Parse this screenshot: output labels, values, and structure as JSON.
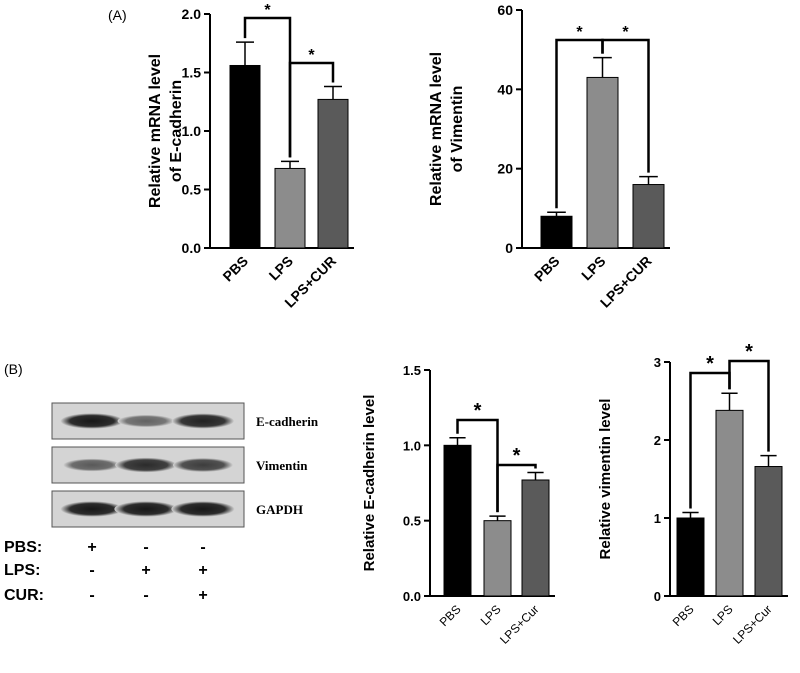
{
  "panel_labels": {
    "a": "(A)",
    "b": "(B)"
  },
  "chart_data": [
    {
      "type": "bar",
      "categories": [
        "PBS",
        "LPS",
        "LPS+CUR"
      ],
      "values": [
        1.56,
        0.68,
        1.27
      ],
      "errors": [
        0.2,
        0.06,
        0.11
      ],
      "colors": [
        "#000000",
        "#8c8c8c",
        "#5a5a5a"
      ],
      "ylabel_lines": [
        "Relative mRNA level",
        "of E-cadherin"
      ],
      "ylim": [
        0,
        2.0
      ],
      "yticks": [
        "0.0",
        "0.5",
        "1.0",
        "1.5",
        "2.0"
      ],
      "significance": [
        {
          "from": 0,
          "to": 1,
          "label": "*"
        },
        {
          "from": 1,
          "to": 2,
          "label": "*"
        }
      ]
    },
    {
      "type": "bar",
      "categories": [
        "PBS",
        "LPS",
        "LPS+CUR"
      ],
      "values": [
        8,
        43,
        16
      ],
      "errors": [
        1,
        5,
        2
      ],
      "colors": [
        "#000000",
        "#8c8c8c",
        "#5a5a5a"
      ],
      "ylabel_lines": [
        "Relative mRNA level",
        "of Vimentin"
      ],
      "ylim": [
        0,
        60
      ],
      "yticks": [
        "0",
        "20",
        "40",
        "60"
      ],
      "significance": [
        {
          "from": 0,
          "to": 1,
          "label": "*"
        },
        {
          "from": 1,
          "to": 2,
          "label": "*"
        }
      ]
    },
    {
      "type": "bar",
      "categories": [
        "PBS",
        "LPS",
        "LPS+Cur"
      ],
      "values": [
        1.0,
        0.5,
        0.77
      ],
      "errors": [
        0.05,
        0.03,
        0.05
      ],
      "colors": [
        "#000000",
        "#8c8c8c",
        "#5a5a5a"
      ],
      "ylabel_lines": [
        "Relative E-cadherin  level"
      ],
      "ylim": [
        0,
        1.5
      ],
      "yticks": [
        "0.0",
        "0.5",
        "1.0",
        "1.5"
      ],
      "significance": [
        {
          "from": 0,
          "to": 1,
          "label": "*"
        },
        {
          "from": 1,
          "to": 2,
          "label": "*"
        }
      ]
    },
    {
      "type": "bar",
      "categories": [
        "PBS",
        "LPS",
        "LPS+Cur"
      ],
      "values": [
        1.0,
        2.38,
        1.66
      ],
      "errors": [
        0.07,
        0.22,
        0.14
      ],
      "colors": [
        "#000000",
        "#8c8c8c",
        "#5a5a5a"
      ],
      "ylabel_lines": [
        "Relative vimentin  level"
      ],
      "ylim": [
        0,
        3
      ],
      "yticks": [
        "0",
        "1",
        "2",
        "3"
      ],
      "significance": [
        {
          "from": 0,
          "to": 1,
          "label": "*"
        },
        {
          "from": 1,
          "to": 2,
          "label": "*"
        }
      ]
    }
  ],
  "western_blot": {
    "bands": [
      {
        "label": "E-cadherin",
        "intensities": [
          0.95,
          0.55,
          0.9
        ]
      },
      {
        "label": "Vimentin",
        "intensities": [
          0.6,
          0.85,
          0.75
        ]
      },
      {
        "label": "GAPDH",
        "intensities": [
          0.95,
          0.95,
          0.95
        ]
      }
    ],
    "groups": [
      {
        "label": "PBS:",
        "signs": [
          "+",
          "-",
          "-"
        ]
      },
      {
        "label": "LPS:",
        "signs": [
          "-",
          "+",
          "+"
        ]
      },
      {
        "label": "CUR:",
        "signs": [
          "-",
          "-",
          "+"
        ]
      }
    ]
  }
}
